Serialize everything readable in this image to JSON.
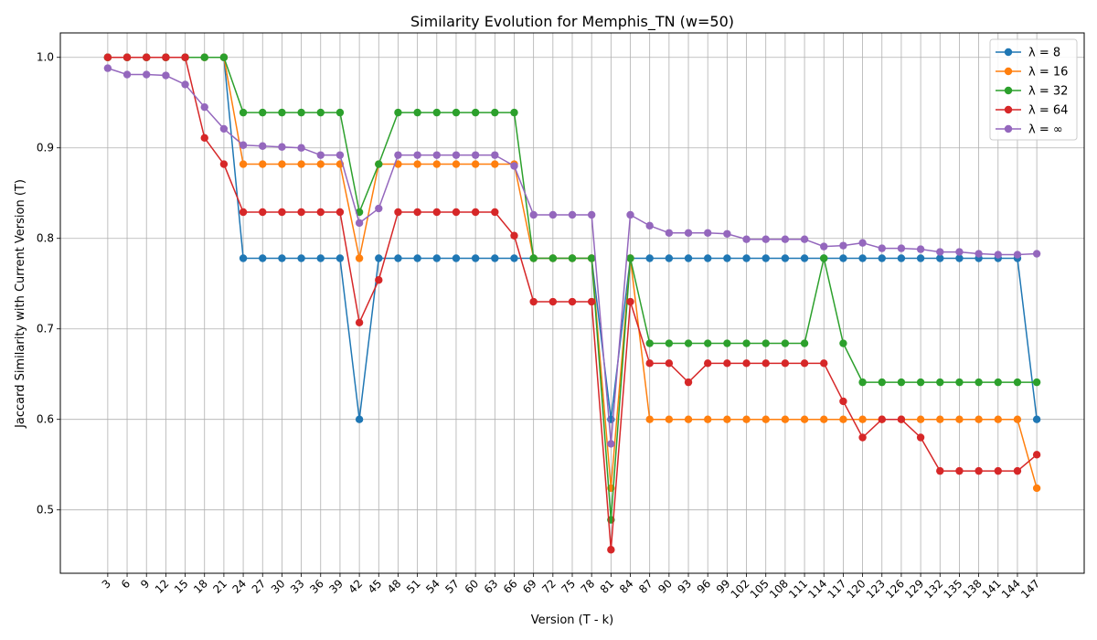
{
  "chart_data": {
    "type": "line",
    "title": "Similarity Evolution for Memphis_TN (w=50)",
    "xlabel": "Version (T - k)",
    "ylabel": "Jaccard Similarity with Current Version (T)",
    "ylim": [
      0.43,
      1.027
    ],
    "yticks": [
      0.5,
      0.6,
      0.7,
      0.8,
      0.9,
      1.0
    ],
    "ytick_labels": [
      "0.5",
      "0.6",
      "0.7",
      "0.8",
      "0.9",
      "1.0"
    ],
    "x": [
      3,
      6,
      9,
      12,
      15,
      18,
      21,
      24,
      27,
      30,
      33,
      36,
      39,
      42,
      45,
      48,
      51,
      54,
      57,
      60,
      63,
      66,
      69,
      72,
      75,
      78,
      81,
      84,
      87,
      90,
      93,
      96,
      99,
      102,
      105,
      108,
      111,
      114,
      117,
      120,
      123,
      126,
      129,
      132,
      135,
      138,
      141,
      144,
      147
    ],
    "grid": true,
    "legend_position": "top-right",
    "series": [
      {
        "name": "λ = 8",
        "color": "#1f77b4",
        "values": [
          1.0,
          1.0,
          1.0,
          1.0,
          1.0,
          1.0,
          1.0,
          0.778,
          0.778,
          0.778,
          0.778,
          0.778,
          0.778,
          0.6,
          0.778,
          0.778,
          0.778,
          0.778,
          0.778,
          0.778,
          0.778,
          0.778,
          0.778,
          0.778,
          0.778,
          0.778,
          0.6,
          0.778,
          0.778,
          0.778,
          0.778,
          0.778,
          0.778,
          0.778,
          0.778,
          0.778,
          0.778,
          0.778,
          0.778,
          0.778,
          0.778,
          0.778,
          0.778,
          0.778,
          0.778,
          0.778,
          0.778,
          0.778,
          0.6
        ]
      },
      {
        "name": "λ = 16",
        "color": "#ff7f0e",
        "values": [
          1.0,
          1.0,
          1.0,
          1.0,
          1.0,
          1.0,
          1.0,
          0.882,
          0.882,
          0.882,
          0.882,
          0.882,
          0.882,
          0.778,
          0.882,
          0.882,
          0.882,
          0.882,
          0.882,
          0.882,
          0.882,
          0.882,
          0.778,
          0.778,
          0.778,
          0.778,
          0.524,
          0.778,
          0.6,
          0.6,
          0.6,
          0.6,
          0.6,
          0.6,
          0.6,
          0.6,
          0.6,
          0.6,
          0.6,
          0.6,
          0.6,
          0.6,
          0.6,
          0.6,
          0.6,
          0.6,
          0.6,
          0.6,
          0.524
        ]
      },
      {
        "name": "λ = 32",
        "color": "#2ca02c",
        "values": [
          1.0,
          1.0,
          1.0,
          1.0,
          1.0,
          1.0,
          1.0,
          0.939,
          0.939,
          0.939,
          0.939,
          0.939,
          0.939,
          0.829,
          0.882,
          0.939,
          0.939,
          0.939,
          0.939,
          0.939,
          0.939,
          0.939,
          0.778,
          0.778,
          0.778,
          0.778,
          0.489,
          0.778,
          0.684,
          0.684,
          0.684,
          0.684,
          0.684,
          0.684,
          0.684,
          0.684,
          0.684,
          0.778,
          0.684,
          0.641,
          0.641,
          0.641,
          0.641,
          0.641,
          0.641,
          0.641,
          0.641,
          0.641,
          0.641
        ]
      },
      {
        "name": "λ = 64",
        "color": "#d62728",
        "values": [
          1.0,
          1.0,
          1.0,
          1.0,
          1.0,
          0.911,
          0.882,
          0.829,
          0.829,
          0.829,
          0.829,
          0.829,
          0.829,
          0.707,
          0.754,
          0.829,
          0.829,
          0.829,
          0.829,
          0.829,
          0.829,
          0.803,
          0.73,
          0.73,
          0.73,
          0.73,
          0.456,
          0.73,
          0.662,
          0.662,
          0.641,
          0.662,
          0.662,
          0.662,
          0.662,
          0.662,
          0.662,
          0.662,
          0.62,
          0.58,
          0.6,
          0.6,
          0.58,
          0.543,
          0.543,
          0.543,
          0.543,
          0.543,
          0.561
        ]
      },
      {
        "name": "λ = ∞",
        "color": "#9467bd",
        "values": [
          0.988,
          0.981,
          0.981,
          0.98,
          0.97,
          0.945,
          0.921,
          0.903,
          0.902,
          0.901,
          0.9,
          0.892,
          0.892,
          0.817,
          0.833,
          0.892,
          0.892,
          0.892,
          0.892,
          0.892,
          0.892,
          0.88,
          0.826,
          0.826,
          0.826,
          0.826,
          0.573,
          0.826,
          0.814,
          0.806,
          0.806,
          0.806,
          0.805,
          0.799,
          0.799,
          0.799,
          0.799,
          0.791,
          0.792,
          0.795,
          0.789,
          0.789,
          0.788,
          0.785,
          0.785,
          0.783,
          0.782,
          0.782,
          0.783
        ]
      }
    ]
  }
}
